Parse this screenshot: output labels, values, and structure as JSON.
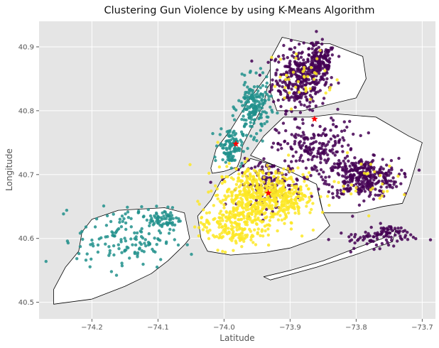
{
  "chart_data": {
    "type": "scatter",
    "title": "Clustering Gun Violence by using K-Means Algorithm",
    "xlabel": "Latitude",
    "ylabel": "Longitude",
    "xlim": [
      -74.28,
      -73.68
    ],
    "ylim": [
      40.474,
      40.94
    ],
    "xticks": [
      -74.2,
      -74.1,
      -74.0,
      -73.9,
      -73.8,
      -73.7
    ],
    "xtick_labels": [
      "−74.2",
      "−74.1",
      "−74.0",
      "−73.9",
      "−73.8",
      "−73.7"
    ],
    "yticks": [
      40.5,
      40.6,
      40.7,
      40.8,
      40.9
    ],
    "ytick_labels": [
      "40.5",
      "40.6",
      "40.7",
      "40.8",
      "40.9"
    ],
    "grid": true,
    "legend": "none",
    "background": "#e5e5e5",
    "grid_color": "#ffffff",
    "land_color": "#ffffff",
    "land_outline_color": "#000000",
    "series": [
      {
        "color": "#440154",
        "regions": [
          {
            "center": [
              -73.885,
              40.85
            ],
            "spread": [
              0.035,
              0.04
            ],
            "count": 320
          },
          {
            "center": [
              -73.855,
              40.875
            ],
            "spread": [
              0.02,
              0.025
            ],
            "count": 140
          },
          {
            "center": [
              -73.79,
              40.695
            ],
            "spread": [
              0.045,
              0.025
            ],
            "count": 320
          },
          {
            "center": [
              -73.86,
              40.74
            ],
            "spread": [
              0.05,
              0.035
            ],
            "count": 200
          },
          {
            "center": [
              -73.93,
              40.685
            ],
            "spread": [
              0.04,
              0.03
            ],
            "count": 140
          },
          {
            "center": [
              -73.77,
              40.6
            ],
            "spread": [
              0.05,
              0.012
            ],
            "count": 60
          },
          {
            "center": [
              -73.75,
              40.61
            ],
            "spread": [
              0.02,
              0.01
            ],
            "count": 40
          }
        ]
      },
      {
        "color": "#21918c",
        "regions": [
          {
            "center": [
              -73.955,
              40.805
            ],
            "spread": [
              0.02,
              0.035
            ],
            "count": 180
          },
          {
            "center": [
              -73.99,
              40.745
            ],
            "spread": [
              0.015,
              0.025
            ],
            "count": 110
          },
          {
            "center": [
              -74.15,
              40.6
            ],
            "spread": [
              0.06,
              0.04
            ],
            "count": 150
          },
          {
            "center": [
              -74.09,
              40.63
            ],
            "spread": [
              0.02,
              0.015
            ],
            "count": 60
          }
        ]
      },
      {
        "color": "#fde725",
        "regions": [
          {
            "center": [
              -73.95,
              40.665
            ],
            "spread": [
              0.05,
              0.04
            ],
            "count": 480
          },
          {
            "center": [
              -73.99,
              40.62
            ],
            "spread": [
              0.04,
              0.03
            ],
            "count": 180
          },
          {
            "center": [
              -73.9,
              40.67
            ],
            "spread": [
              0.03,
              0.03
            ],
            "count": 120
          },
          {
            "center": [
              -73.88,
              40.85
            ],
            "spread": [
              0.04,
              0.04
            ],
            "count": 40
          },
          {
            "center": [
              -73.8,
              40.69
            ],
            "spread": [
              0.05,
              0.03
            ],
            "count": 30
          }
        ]
      }
    ],
    "centroids": [
      {
        "x": -73.863,
        "y": 40.787,
        "color": "#ff0000"
      },
      {
        "x": -73.933,
        "y": 40.671,
        "color": "#ff0000"
      },
      {
        "x": -73.982,
        "y": 40.748,
        "color": "#ff0000"
      }
    ]
  }
}
